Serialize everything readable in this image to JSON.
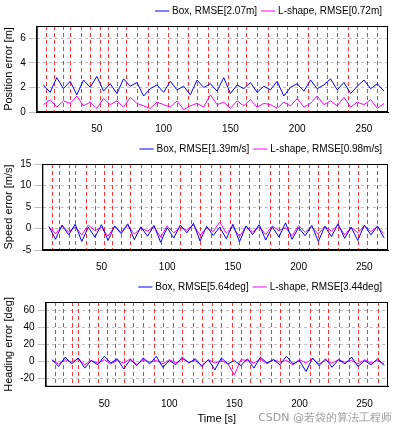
{
  "chart_data": [
    {
      "type": "line",
      "ylabel": "Position error [m]",
      "x": [
        10,
        15,
        20,
        25,
        30,
        35,
        40,
        45,
        50,
        55,
        60,
        65,
        70,
        75,
        80,
        85,
        90,
        95,
        100,
        105,
        110,
        115,
        120,
        125,
        130,
        135,
        140,
        145,
        150,
        155,
        160,
        165,
        170,
        175,
        180,
        185,
        190,
        195,
        200,
        205,
        210,
        215,
        220,
        225,
        230,
        235,
        240,
        245,
        250,
        255,
        260,
        265
      ],
      "series": [
        {
          "name": "Box, RMSE[2.07m]",
          "color": "#0000ff",
          "marker": "none",
          "line_style": "solid",
          "values": [
            2.2,
            1.6,
            2.8,
            1.9,
            2.5,
            1.4,
            2.6,
            2.0,
            2.9,
            1.7,
            2.3,
            1.5,
            2.7,
            2.1,
            2.4,
            1.3,
            1.9,
            2.2,
            1.6,
            2.5,
            1.8,
            2.1,
            1.4,
            2.6,
            2.0,
            2.3,
            1.7,
            2.8,
            1.5,
            2.2,
            1.9,
            2.4,
            1.6,
            2.1,
            1.8,
            2.5,
            1.3,
            2.0,
            2.3,
            1.7,
            2.6,
            1.9,
            2.2,
            2.7,
            1.8,
            2.4,
            1.5,
            2.1,
            2.6,
            1.9,
            2.3,
            1.7
          ]
        },
        {
          "name": "L-shape, RMSE[0.72m]",
          "color": "#ff00ff",
          "marker": "none",
          "line_style": "solid",
          "values": [
            0.6,
            1.0,
            0.4,
            0.9,
            0.7,
            1.3,
            0.5,
            0.8,
            0.3,
            1.1,
            0.6,
            0.9,
            0.4,
            1.2,
            0.7,
            0.5,
            0.3,
            0.8,
            0.6,
            0.4,
            0.9,
            0.2,
            0.5,
            0.7,
            0.4,
            1.4,
            0.6,
            0.8,
            0.3,
            0.9,
            0.5,
            1.0,
            0.4,
            0.7,
            0.6,
            0.3,
            0.8,
            0.5,
            1.1,
            0.4,
            0.7,
            1.3,
            0.6,
            0.9,
            0.5,
            1.2,
            0.4,
            0.8,
            0.6,
            1.0,
            0.3,
            0.7
          ]
        }
      ],
      "xlim": [
        5,
        268
      ],
      "xticks": [
        50,
        100,
        150,
        200,
        250
      ],
      "ylim": [
        0,
        7
      ],
      "yticks": [
        0,
        2,
        4,
        6
      ],
      "grid": true,
      "legend": "top",
      "vertical_lines": {
        "x": [
          12,
          18,
          25,
          30,
          38,
          45,
          52,
          58,
          65,
          72,
          80,
          88,
          95,
          103,
          110,
          118,
          125,
          133,
          140,
          148,
          155,
          162,
          170,
          178,
          185,
          192,
          200,
          208,
          215,
          222,
          230,
          238,
          245,
          252,
          260
        ],
        "color": "#ff0000",
        "line_style": "dashed"
      }
    },
    {
      "type": "line",
      "ylabel": "Speed error [m/s]",
      "x": [
        10,
        15,
        20,
        25,
        30,
        35,
        40,
        45,
        50,
        55,
        60,
        65,
        70,
        75,
        80,
        85,
        90,
        95,
        100,
        105,
        110,
        115,
        120,
        125,
        130,
        135,
        140,
        145,
        150,
        155,
        160,
        165,
        170,
        175,
        180,
        185,
        190,
        195,
        200,
        205,
        210,
        215,
        220,
        225,
        230,
        235,
        240,
        245,
        250,
        255,
        260,
        265
      ],
      "series": [
        {
          "name": "Box, RMSE[1.39m/s]",
          "color": "#0000ff",
          "marker": "none",
          "line_style": "solid",
          "values": [
            0.5,
            -2.5,
            0.8,
            -1.5,
            1.0,
            -3.0,
            0.3,
            -2.0,
            0.9,
            -2.8,
            0.6,
            -1.2,
            1.1,
            -2.6,
            0.4,
            -1.8,
            0.7,
            -3.2,
            0.2,
            -2.2,
            0.8,
            -1.0,
            1.2,
            -2.9,
            0.5,
            -1.6,
            0.3,
            -2.4,
            1.0,
            -3.1,
            0.6,
            -1.4,
            0.9,
            -2.7,
            0.4,
            -2.0,
            1.3,
            -2.5,
            0.2,
            -1.7,
            0.7,
            -3.0,
            0.5,
            -1.9,
            1.1,
            -2.3,
            0.3,
            -2.8,
            0.8,
            -1.5,
            0.6,
            -2.2
          ]
        },
        {
          "name": "L-shape, RMSE[0.98m/s]",
          "color": "#ff00ff",
          "marker": "none",
          "line_style": "solid",
          "values": [
            0.3,
            -1.2,
            0.6,
            -0.8,
            0.4,
            -1.5,
            0.8,
            -0.5,
            0.2,
            -1.8,
            0.5,
            -0.9,
            0.7,
            -1.3,
            0.1,
            -0.6,
            0.4,
            -2.0,
            0.6,
            -1.0,
            0.3,
            -0.4,
            0.9,
            -1.6,
            0.2,
            -0.7,
            1.5,
            -1.1,
            0.4,
            -1.9,
            0.5,
            -0.8,
            0.3,
            -1.4,
            0.6,
            -0.5,
            0.2,
            -1.7,
            0.7,
            -0.9,
            0.4,
            -1.3,
            0.5,
            -0.6,
            0.8,
            -1.5,
            0.3,
            -1.0,
            0.6,
            -0.7,
            0.4,
            -1.2
          ]
        }
      ],
      "xlim": [
        5,
        268
      ],
      "xticks": [
        50,
        100,
        150,
        200,
        250
      ],
      "ylim": [
        -5,
        15
      ],
      "yticks": [
        -5,
        0,
        5,
        10,
        15
      ],
      "grid": true,
      "legend": "top",
      "vertical_lines": {
        "x": [
          12,
          18,
          25,
          30,
          38,
          45,
          52,
          58,
          65,
          72,
          80,
          88,
          95,
          103,
          110,
          118,
          125,
          133,
          140,
          148,
          155,
          162,
          170,
          178,
          185,
          192,
          200,
          208,
          215,
          222,
          230,
          238,
          245,
          252,
          260
        ],
        "color": "#ff0000",
        "line_style": "dashed"
      }
    },
    {
      "type": "line",
      "ylabel": "Heading error [deg]",
      "xlabel": "Time [s]",
      "x": [
        10,
        15,
        20,
        25,
        30,
        35,
        40,
        45,
        50,
        55,
        60,
        65,
        70,
        75,
        80,
        85,
        90,
        95,
        100,
        105,
        110,
        115,
        120,
        125,
        130,
        135,
        140,
        145,
        150,
        155,
        160,
        165,
        170,
        175,
        180,
        185,
        190,
        195,
        200,
        205,
        210,
        215,
        220,
        225,
        230,
        235,
        240,
        245,
        250,
        255,
        260,
        265
      ],
      "series": [
        {
          "name": "Box, RMSE[5.64deg]",
          "color": "#0000ff",
          "marker": "none",
          "line_style": "solid",
          "values": [
            2,
            -6,
            5,
            -3,
            4,
            -8,
            1,
            -4,
            6,
            -2,
            3,
            -9,
            2,
            -5,
            4,
            -3,
            6,
            -7,
            1,
            -4,
            5,
            -2,
            3,
            -6,
            2,
            -10,
            4,
            -3,
            1,
            -5,
            3,
            -8,
            5,
            -2,
            2,
            -4,
            6,
            -3,
            1,
            -12,
            4,
            -5,
            3,
            -7,
            2,
            -3,
            5,
            -6,
            1,
            -4,
            3,
            -5
          ]
        },
        {
          "name": "L-shape, RMSE[3.44deg]",
          "color": "#ff00ff",
          "marker": "none",
          "line_style": "solid",
          "values": [
            1,
            -3,
            2,
            -1,
            3,
            -4,
            1,
            -2,
            2,
            -3,
            1,
            -2,
            3,
            -4,
            2,
            -1,
            1,
            -3,
            2,
            -2,
            3,
            -1,
            1,
            -5,
            2,
            -2,
            1,
            -3,
            -16,
            2,
            1,
            -2,
            3,
            -3,
            2,
            -1,
            1,
            -4,
            2,
            -2,
            3,
            -3,
            1,
            -2,
            2,
            -1,
            1,
            -3,
            2,
            -2,
            1,
            -3
          ]
        }
      ],
      "xlim": [
        5,
        268
      ],
      "xticks": [
        50,
        100,
        150,
        200,
        250
      ],
      "ylim": [
        -30,
        70
      ],
      "yticks": [
        -20,
        0,
        20,
        40,
        60
      ],
      "grid": true,
      "legend": "top",
      "vertical_lines": {
        "x": [
          12,
          18,
          25,
          30,
          38,
          45,
          52,
          58,
          65,
          72,
          80,
          88,
          95,
          103,
          110,
          118,
          125,
          133,
          140,
          148,
          155,
          162,
          170,
          178,
          185,
          192,
          200,
          208,
          215,
          222,
          230,
          238,
          245,
          252,
          260
        ],
        "color": "#ff0000",
        "line_style": "dashed"
      }
    }
  ],
  "watermark": "CSDN @若袋的算法工程师"
}
